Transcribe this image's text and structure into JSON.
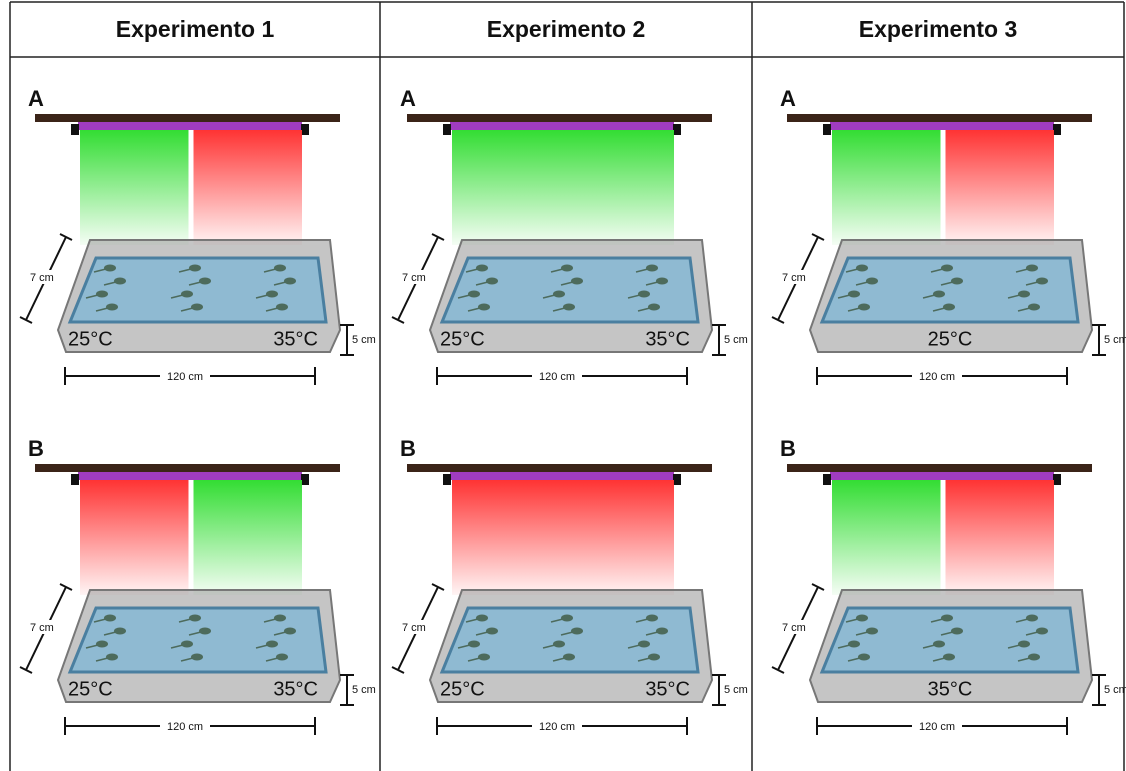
{
  "columns": [
    {
      "title": "Experimento 1",
      "panels": [
        {
          "label": "A",
          "lights": [
            "#33dd33",
            "#ff3333"
          ],
          "temps": [
            "25°C",
            "35°C"
          ],
          "depth": "7 cm",
          "height": "5 cm",
          "length": "120 cm"
        },
        {
          "label": "B",
          "lights": [
            "#ff3333",
            "#33dd33"
          ],
          "temps": [
            "25°C",
            "35°C"
          ],
          "depth": "7 cm",
          "height": "5 cm",
          "length": "120 cm"
        }
      ]
    },
    {
      "title": "Experimento 2",
      "panels": [
        {
          "label": "A",
          "lights": [
            "#33dd33"
          ],
          "temps": [
            "25°C",
            "35°C"
          ],
          "depth": "7 cm",
          "height": "5 cm",
          "length": "120 cm"
        },
        {
          "label": "B",
          "lights": [
            "#ff3333"
          ],
          "temps": [
            "25°C",
            "35°C"
          ],
          "depth": "7 cm",
          "height": "5 cm",
          "length": "120 cm"
        }
      ]
    },
    {
      "title": "Experimento 3",
      "panels": [
        {
          "label": "A",
          "lights": [
            "#33dd33",
            "#ff3333"
          ],
          "temps": [
            "25°C"
          ],
          "depth": "7 cm",
          "height": "5 cm",
          "length": "120 cm"
        },
        {
          "label": "B",
          "lights": [
            "#33dd33",
            "#ff3333"
          ],
          "temps": [
            "35°C"
          ],
          "depth": "7 cm",
          "height": "5 cm",
          "length": "120 cm"
        }
      ]
    }
  ]
}
